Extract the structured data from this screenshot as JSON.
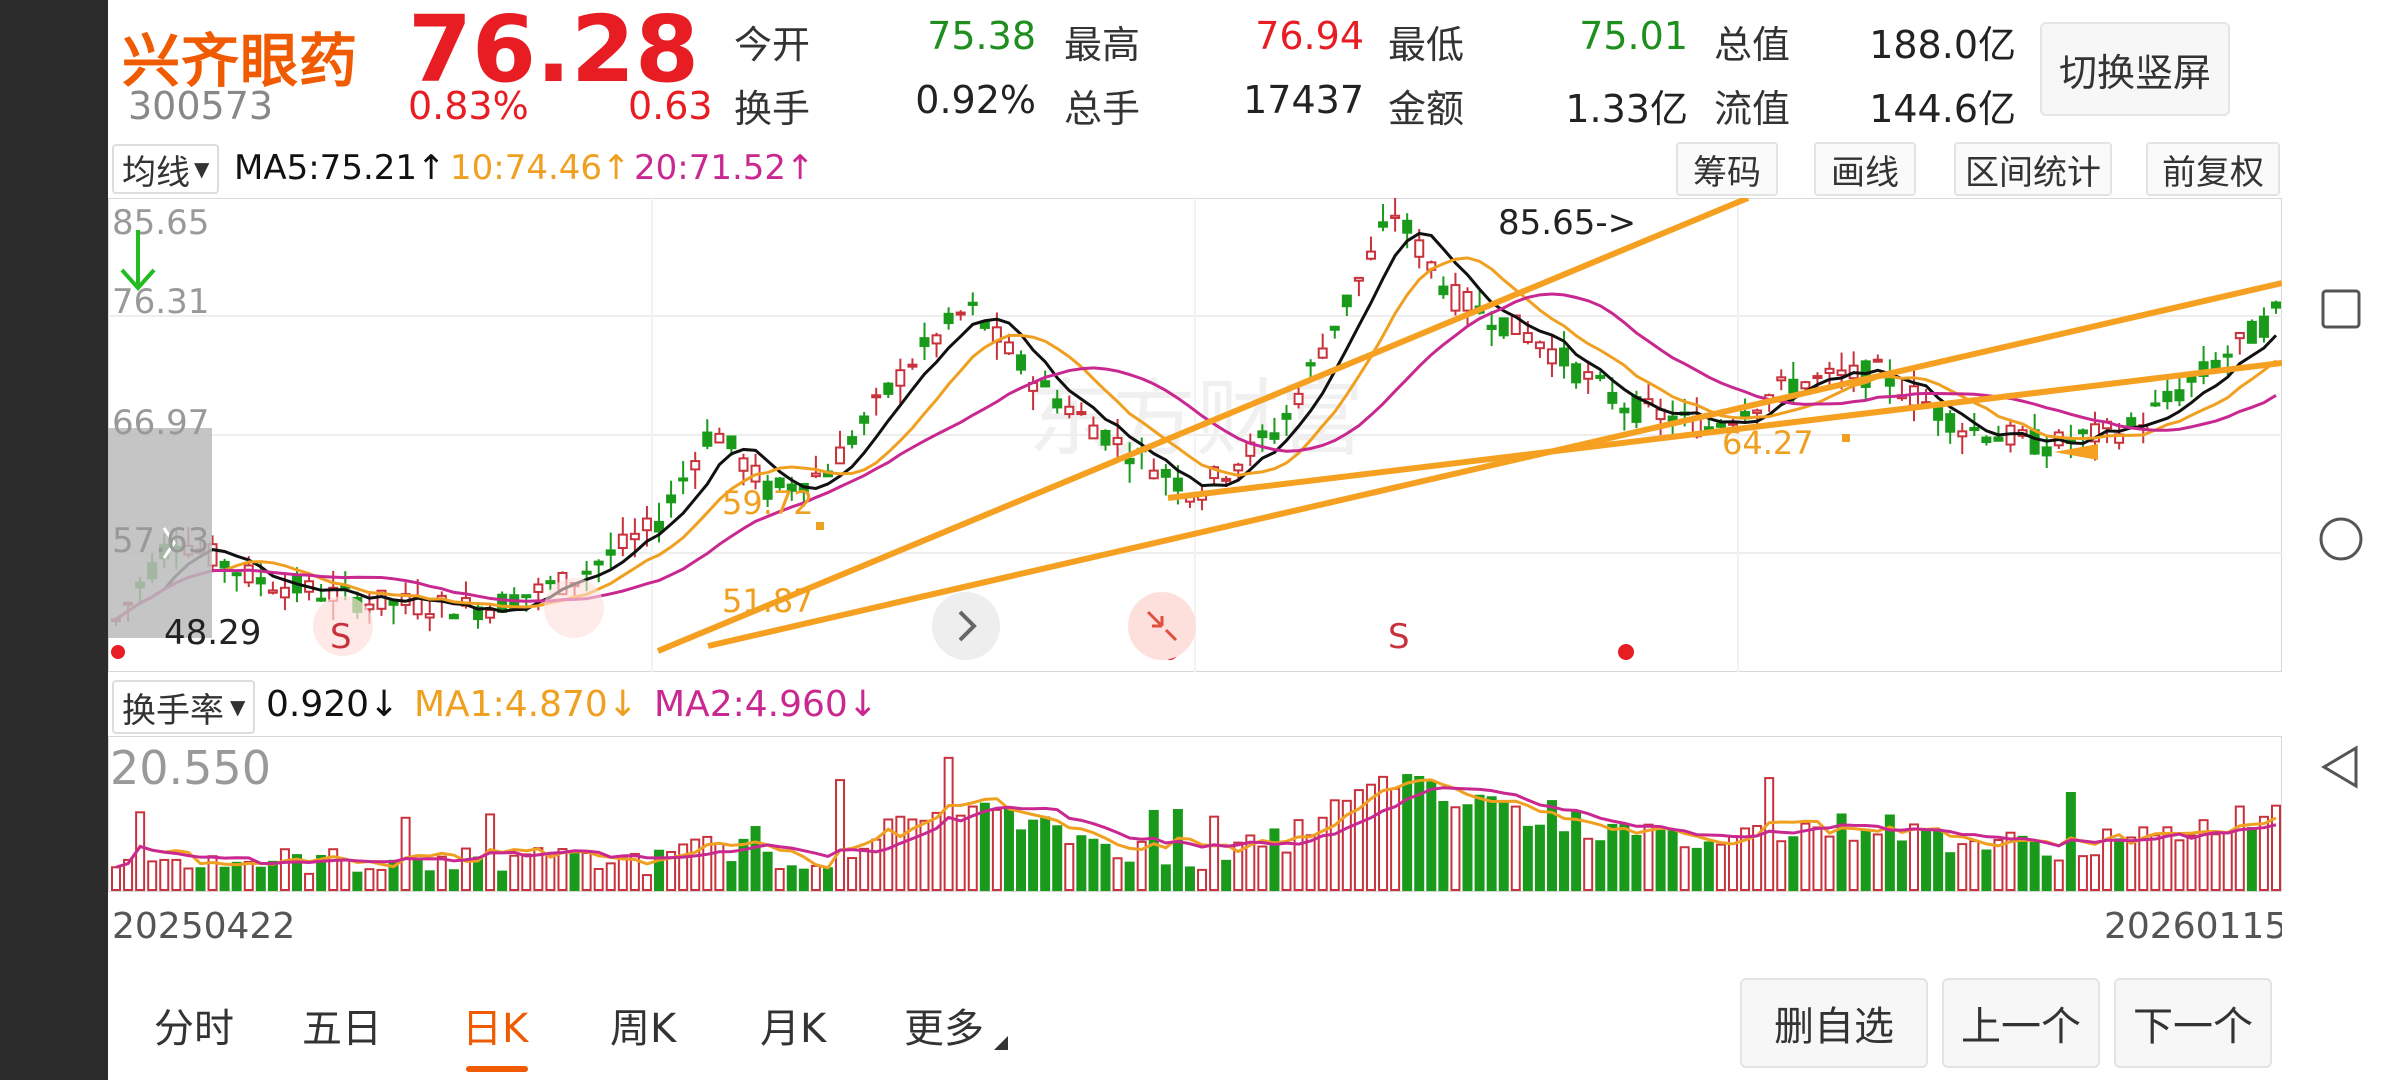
{
  "header": {
    "name": "兴齐眼药",
    "price": "76.28",
    "code": "300573",
    "change_pct": "0.83%",
    "change": "0.63",
    "stats": [
      {
        "label": "今开",
        "value": "75.38"
      },
      {
        "label": "最高",
        "value": "76.94"
      },
      {
        "label": "最低",
        "value": "75.01"
      },
      {
        "label": "总值",
        "value": "188.0亿"
      },
      {
        "label": "换手",
        "value": "0.92%"
      },
      {
        "label": "总手",
        "value": "17437"
      },
      {
        "label": "金额",
        "value": "1.33亿"
      },
      {
        "label": "流值",
        "value": "144.6亿"
      }
    ],
    "portrait_button": "切换竖屏"
  },
  "toolbar": {
    "ma_select": "均线",
    "ma5": "MA5:75.21↑",
    "ma10": "10:74.46↑",
    "ma20": "20:71.52↑",
    "buttons": [
      "筹码",
      "画线",
      "区间统计",
      "前复权"
    ]
  },
  "price_chart": {
    "y_labels": [
      "85.65",
      "76.31",
      "66.97",
      "57.63",
      "48.29"
    ],
    "annotations": {
      "high": "85.65->",
      "low": "48.29",
      "a1": "59.72",
      "a2": "51.87",
      "a3": "64.27",
      "s": "S"
    },
    "watermark": "东方财富"
  },
  "indicator": {
    "select": "换手率",
    "value": "0.920↓",
    "ma1": "MA1:4.870↓",
    "ma2": "MA2:4.960↓",
    "max_label": "20.550"
  },
  "dates": {
    "start": "20250422",
    "end": "20260115"
  },
  "tabs": [
    "分时",
    "五日",
    "日K",
    "周K",
    "月K",
    "更多"
  ],
  "active_tab": "日K",
  "actions": [
    "删自选",
    "上一个",
    "下一个"
  ],
  "colors": {
    "up": "#c8323c",
    "down": "#1a9a1a",
    "ma5": "#111111",
    "ma10": "#f0a020",
    "ma20": "#c82890",
    "trend": "#f5a020",
    "accent": "#f05a00"
  }
}
